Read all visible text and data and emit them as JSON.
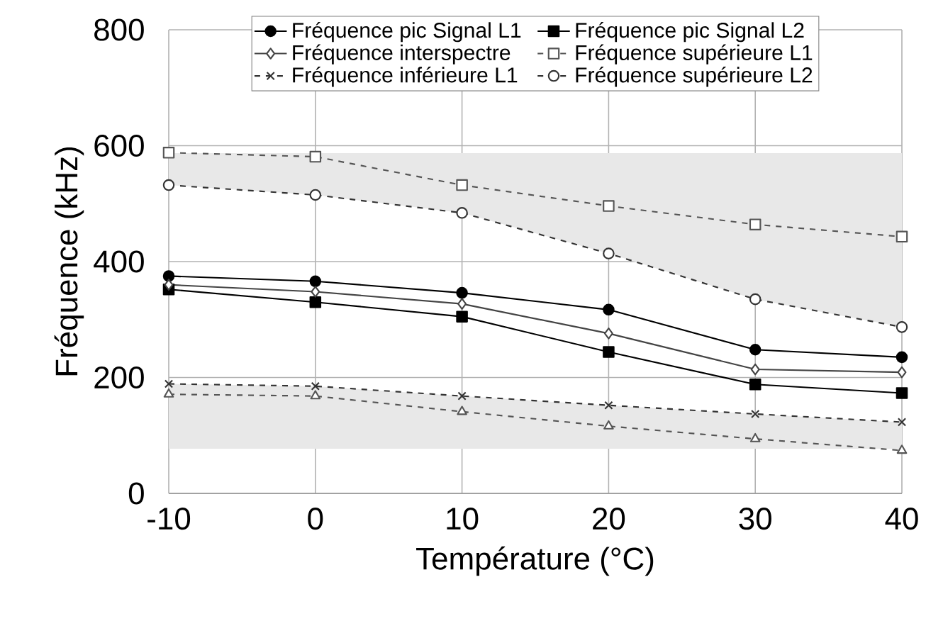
{
  "chart_data": {
    "type": "line",
    "xlabel": "Température (°C)",
    "ylabel": "Fréquence (kHz)",
    "x": [
      -10,
      0,
      10,
      20,
      30,
      40
    ],
    "xlim": [
      -10,
      40
    ],
    "xticks": [
      -10,
      0,
      10,
      20,
      30,
      40
    ],
    "ylim": [
      0,
      800
    ],
    "yticks": [
      0,
      200,
      400,
      600,
      800
    ],
    "grid": true,
    "legend": "top",
    "series": [
      {
        "name": "Fréquence pic Signal L1",
        "color": "#000000",
        "marker": "circle",
        "line_style": "solid",
        "values": [
          375,
          366,
          346,
          317,
          248,
          235
        ]
      },
      {
        "name": "Fréquence pic Signal L2",
        "color": "#000000",
        "marker": "square",
        "line_style": "solid",
        "values": [
          352,
          330,
          305,
          244,
          188,
          173
        ]
      },
      {
        "name": "Fréquence interspectre",
        "color": "#444444",
        "marker": "diamond",
        "line_style": "solid",
        "values": [
          360,
          348,
          327,
          276,
          214,
          209
        ]
      },
      {
        "name": "Fréquence supérieure L1",
        "color": "#555555",
        "marker": "square",
        "line_style": "dashed",
        "values": [
          588,
          581,
          532,
          496,
          464,
          443
        ]
      },
      {
        "name": "Fréquence inférieure L1",
        "color": "#333333",
        "marker": "cross",
        "line_style": "dashed",
        "values": [
          189,
          185,
          168,
          152,
          137,
          123
        ],
        "lower": [
          77,
          77,
          77,
          77,
          77,
          77
        ],
        "upper": [
          189,
          185,
          168,
          152,
          137,
          123
        ]
      },
      {
        "name": "Fréquence supérieure L2",
        "color": "#333333",
        "marker": "circle",
        "line_style": "dashed",
        "values": [
          532,
          515,
          484,
          414,
          335,
          287
        ],
        "lower": [
          532,
          515,
          484,
          414,
          335,
          287
        ],
        "upper": [
          587,
          587,
          587,
          587,
          587,
          587
        ]
      },
      {
        "color": "#555555",
        "marker": "triangle",
        "line_style": "dashed",
        "values": [
          171,
          168,
          141,
          116,
          94,
          74
        ]
      }
    ]
  }
}
